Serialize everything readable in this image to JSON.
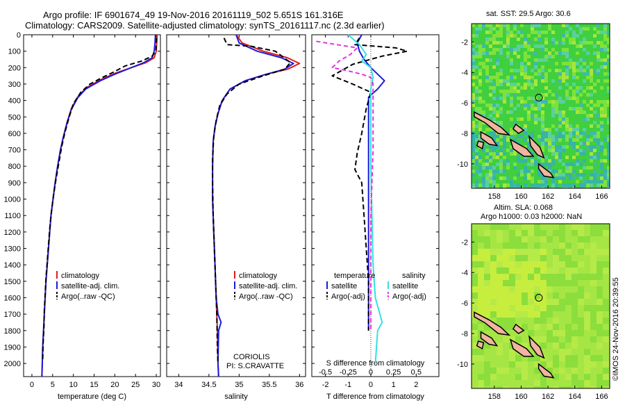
{
  "header": {
    "title_line1": "Argo profile: IF 6901674_49 19-Nov-2016 20161119_502 5.651S 161.316E",
    "title_line2": "Climatology: CARS2009. Satellite-adjusted climatology: synTS_20161117.nc (2.3d earlier)"
  },
  "colors": {
    "climatology": "#e41a1c",
    "satellite": "#1a1adb",
    "argo": "#000000",
    "sal_satellite": "#33e0e0",
    "sal_argo": "#e033e0"
  },
  "chart_data": [
    {
      "type": "line",
      "id": "temperature",
      "xlabel": "temperature (deg C)",
      "xlim": [
        -2,
        31
      ],
      "xticks": [
        0,
        5,
        10,
        15,
        20,
        25,
        30
      ],
      "ylim": [
        2080,
        0
      ],
      "yticks": [
        0,
        100,
        200,
        300,
        400,
        500,
        600,
        700,
        800,
        900,
        1000,
        1100,
        1200,
        1300,
        1400,
        1500,
        1600,
        1700,
        1800,
        1900,
        2000
      ],
      "legend": {
        "placement": "lower-center",
        "entries": [
          "climatology",
          "satellite-adj. clim.",
          "Argo(..raw -QC)"
        ]
      },
      "series": [
        {
          "name": "climatology",
          "color_key": "climatology",
          "dash": "",
          "points": [
            [
              30.2,
              0
            ],
            [
              30.1,
              50
            ],
            [
              30.0,
              100
            ],
            [
              29.5,
              140
            ],
            [
              27.5,
              170
            ],
            [
              24,
              200
            ],
            [
              20,
              235
            ],
            [
              16.5,
              275
            ],
            [
              13,
              325
            ],
            [
              11,
              380
            ],
            [
              9.5,
              450
            ],
            [
              8.5,
              530
            ],
            [
              7.6,
              620
            ],
            [
              6.9,
              700
            ],
            [
              6.2,
              800
            ],
            [
              5.6,
              900
            ],
            [
              5.1,
              1000
            ],
            [
              4.6,
              1100
            ],
            [
              4.3,
              1200
            ],
            [
              4.0,
              1300
            ],
            [
              3.7,
              1400
            ],
            [
              3.4,
              1500
            ],
            [
              3.2,
              1600
            ],
            [
              3.0,
              1700
            ],
            [
              2.8,
              1800
            ],
            [
              2.6,
              1900
            ],
            [
              2.5,
              2000
            ],
            [
              2.4,
              2080
            ]
          ]
        },
        {
          "name": "satellite-adj. clim.",
          "color_key": "satellite",
          "dash": "",
          "points": [
            [
              29.8,
              0
            ],
            [
              29.7,
              50
            ],
            [
              29.5,
              100
            ],
            [
              29.0,
              140
            ],
            [
              27.0,
              170
            ],
            [
              23.5,
              205
            ],
            [
              20,
              240
            ],
            [
              16.5,
              280
            ],
            [
              13,
              330
            ],
            [
              11,
              385
            ],
            [
              9.5,
              455
            ],
            [
              8.5,
              535
            ],
            [
              7.6,
              620
            ],
            [
              6.9,
              700
            ],
            [
              6.2,
              800
            ],
            [
              5.6,
              900
            ],
            [
              5.1,
              1000
            ],
            [
              4.6,
              1100
            ],
            [
              4.3,
              1200
            ],
            [
              4.0,
              1300
            ],
            [
              3.7,
              1400
            ],
            [
              3.4,
              1500
            ],
            [
              3.2,
              1600
            ],
            [
              3.0,
              1700
            ],
            [
              2.8,
              1800
            ],
            [
              2.6,
              1900
            ],
            [
              2.5,
              2000
            ],
            [
              2.4,
              2080
            ]
          ]
        },
        {
          "name": "Argo(..raw -QC)",
          "color_key": "argo",
          "dash": "7,4",
          "points": [
            [
              30.1,
              20
            ],
            [
              30.0,
              60
            ],
            [
              29.9,
              100
            ],
            [
              29.0,
              130
            ],
            [
              26.5,
              160
            ],
            [
              22.5,
              190
            ],
            [
              19.5,
              230
            ],
            [
              17,
              260
            ],
            [
              14,
              300
            ],
            [
              11.8,
              350
            ],
            [
              10,
              420
            ],
            [
              9.0,
              500
            ],
            [
              8.0,
              590
            ],
            [
              7.2,
              680
            ],
            [
              6.5,
              780
            ],
            [
              5.8,
              880
            ],
            [
              5.2,
              980
            ],
            [
              4.7,
              1080
            ],
            [
              4.3,
              1180
            ],
            [
              4.0,
              1280
            ],
            [
              3.7,
              1380
            ],
            [
              3.4,
              1480
            ],
            [
              3.2,
              1580
            ],
            [
              3.0,
              1680
            ],
            [
              2.9,
              1780
            ],
            [
              2.7,
              1880
            ],
            [
              2.6,
              1980
            ]
          ]
        }
      ]
    },
    {
      "type": "line",
      "id": "salinity",
      "xlabel": "salinity",
      "xlim": [
        33.8,
        36.1
      ],
      "xticks": [
        34,
        34.5,
        35,
        35.5,
        36
      ],
      "ylim": [
        2080,
        0
      ],
      "legend": {
        "placement": "lower-center",
        "entries": [
          "climatology",
          "satellite-adj. clim.",
          "Argo(..raw -QC)"
        ]
      },
      "annotation": {
        "line1": "CORIOLIS",
        "line2": "PI: S.CRAVATTE"
      },
      "series": [
        {
          "name": "climatology",
          "color_key": "climatology",
          "dash": "",
          "points": [
            [
              34.95,
              0
            ],
            [
              35.05,
              50
            ],
            [
              35.4,
              100
            ],
            [
              35.8,
              140
            ],
            [
              36.0,
              175
            ],
            [
              35.8,
              210
            ],
            [
              35.45,
              240
            ],
            [
              35.1,
              280
            ],
            [
              34.85,
              330
            ],
            [
              34.72,
              400
            ],
            [
              34.65,
              480
            ],
            [
              34.6,
              560
            ],
            [
              34.57,
              650
            ],
            [
              34.56,
              800
            ],
            [
              34.56,
              1000
            ],
            [
              34.58,
              1200
            ],
            [
              34.6,
              1400
            ],
            [
              34.62,
              1600
            ],
            [
              34.64,
              1800
            ],
            [
              34.65,
              2000
            ],
            [
              34.66,
              2080
            ]
          ]
        },
        {
          "name": "satellite-adj. clim.",
          "color_key": "satellite",
          "dash": "",
          "points": [
            [
              34.95,
              0
            ],
            [
              35.0,
              50
            ],
            [
              35.3,
              100
            ],
            [
              35.7,
              140
            ],
            [
              35.9,
              175
            ],
            [
              35.75,
              210
            ],
            [
              35.45,
              240
            ],
            [
              35.1,
              280
            ],
            [
              34.85,
              330
            ],
            [
              34.72,
              400
            ],
            [
              34.65,
              480
            ],
            [
              34.6,
              560
            ],
            [
              34.57,
              650
            ],
            [
              34.56,
              800
            ],
            [
              34.56,
              1000
            ],
            [
              34.58,
              1200
            ],
            [
              34.6,
              1400
            ],
            [
              34.62,
              1600
            ],
            [
              34.65,
              1700
            ],
            [
              34.7,
              1750
            ],
            [
              34.66,
              1800
            ],
            [
              34.65,
              2000
            ],
            [
              34.66,
              2080
            ]
          ]
        },
        {
          "name": "Argo(..raw -QC)",
          "color_key": "argo",
          "dash": "7,4",
          "points": [
            [
              34.75,
              20
            ],
            [
              34.8,
              60
            ],
            [
              35.2,
              70
            ],
            [
              35.6,
              100
            ],
            [
              35.85,
              170
            ],
            [
              35.75,
              210
            ],
            [
              35.4,
              250
            ],
            [
              35.0,
              300
            ],
            [
              34.8,
              360
            ],
            [
              34.68,
              430
            ],
            [
              34.62,
              520
            ],
            [
              34.58,
              620
            ],
            [
              34.56,
              750
            ],
            [
              34.56,
              900
            ],
            [
              34.57,
              1100
            ],
            [
              34.59,
              1300
            ],
            [
              34.61,
              1500
            ],
            [
              34.63,
              1700
            ],
            [
              34.64,
              1900
            ],
            [
              34.65,
              2000
            ]
          ]
        }
      ]
    },
    {
      "type": "line",
      "id": "difference",
      "xlabel": "T difference from climatology",
      "xlim": [
        -2.6,
        3.0
      ],
      "xticks": [
        -2,
        -1,
        0,
        1,
        2
      ],
      "top_axis_label": "S difference from climatology",
      "top_ticks": [
        "-0.5",
        "-0.25",
        "0",
        "0.25",
        "0.5"
      ],
      "ylim": [
        2080,
        0
      ],
      "legend": {
        "placement": "lower-center",
        "entries": [
          "temperature",
          "satellite",
          "Argo(-adj)",
          "salinity",
          "satellite",
          "Argo(-adj)"
        ]
      },
      "series": [
        {
          "name": "satellite",
          "color_key": "satellite",
          "dash": "",
          "points": [
            [
              -0.4,
              0
            ],
            [
              -0.6,
              50
            ],
            [
              -0.5,
              100
            ],
            [
              -0.3,
              150
            ],
            [
              0.0,
              200
            ],
            [
              0.6,
              280
            ],
            [
              0.3,
              330
            ],
            [
              -0.1,
              380
            ],
            [
              -0.1,
              500
            ],
            [
              -0.1,
              700
            ],
            [
              -0.1,
              900
            ],
            [
              -0.1,
              1100
            ],
            [
              -0.1,
              1300
            ],
            [
              -0.1,
              1500
            ],
            [
              -0.1,
              1700
            ],
            [
              -0.1,
              1800
            ]
          ]
        },
        {
          "name": "Argo(-adj)",
          "color_key": "argo",
          "dash": "7,4",
          "points": [
            [
              -0.5,
              20
            ],
            [
              -0.7,
              60
            ],
            [
              1.1,
              80
            ],
            [
              1.6,
              100
            ],
            [
              0.5,
              130
            ],
            [
              -0.8,
              180
            ],
            [
              -1.7,
              250
            ],
            [
              -0.8,
              300
            ],
            [
              0.0,
              350
            ],
            [
              -0.2,
              450
            ],
            [
              -0.4,
              600
            ],
            [
              -0.6,
              720
            ],
            [
              -0.7,
              820
            ],
            [
              -0.4,
              900
            ],
            [
              -0.3,
              1100
            ],
            [
              -0.2,
              1300
            ],
            [
              -0.1,
              1500
            ],
            [
              -0.1,
              1700
            ],
            [
              -0.1,
              1800
            ]
          ]
        },
        {
          "name": "salinity satellite",
          "color_key": "sal_satellite",
          "dash": "",
          "points": [
            [
              -1.0,
              0
            ],
            [
              -0.5,
              60
            ],
            [
              -0.2,
              120
            ],
            [
              -0.4,
              160
            ],
            [
              0.0,
              200
            ],
            [
              0.1,
              260
            ],
            [
              0.0,
              330
            ],
            [
              0.0,
              500
            ],
            [
              0.0,
              800
            ],
            [
              0.05,
              1100
            ],
            [
              0.1,
              1400
            ],
            [
              0.2,
              1600
            ],
            [
              0.5,
              1750
            ],
            [
              0.3,
              1800
            ],
            [
              0.2,
              2000
            ]
          ]
        },
        {
          "name": "salinity Argo(-adj)",
          "color_key": "sal_argo",
          "dash": "6,4",
          "points": [
            [
              -2.4,
              40
            ],
            [
              -1.5,
              60
            ],
            [
              -0.6,
              80
            ],
            [
              -0.9,
              120
            ],
            [
              -1.4,
              160
            ],
            [
              -1.7,
              200
            ],
            [
              -1.0,
              220
            ],
            [
              -0.4,
              240
            ],
            [
              0.0,
              260
            ],
            [
              0.1,
              300
            ],
            [
              0.1,
              450
            ],
            [
              0.1,
              700
            ],
            [
              0.05,
              900
            ],
            [
              0.0,
              1100
            ],
            [
              0.0,
              1300
            ],
            [
              0.0,
              1500
            ],
            [
              0.0,
              1700
            ],
            [
              0.0,
              1800
            ]
          ]
        }
      ]
    }
  ],
  "maps": [
    {
      "id": "sst-map",
      "title": "sat. SST: 29.5 Argo: 30.6",
      "yticks": [
        "-2",
        "-4",
        "-6",
        "-8",
        "-10"
      ],
      "xticks": [
        "158",
        "160",
        "162",
        "164",
        "166"
      ],
      "marker": {
        "lon": 161.316,
        "lat": -5.651
      }
    },
    {
      "id": "sla-map",
      "title_line1": "Altim. SLA: 0.068",
      "title_line2": "Argo h1000: 0.03 h2000: NaN",
      "yticks": [
        "-2",
        "-4",
        "-6",
        "-8",
        "-10"
      ],
      "xticks": [
        "158",
        "160",
        "162",
        "164",
        "166"
      ],
      "marker": {
        "lon": 161.316,
        "lat": -5.651
      }
    }
  ],
  "stamp": "©IMOS 24-Nov-2016 20:39:55"
}
